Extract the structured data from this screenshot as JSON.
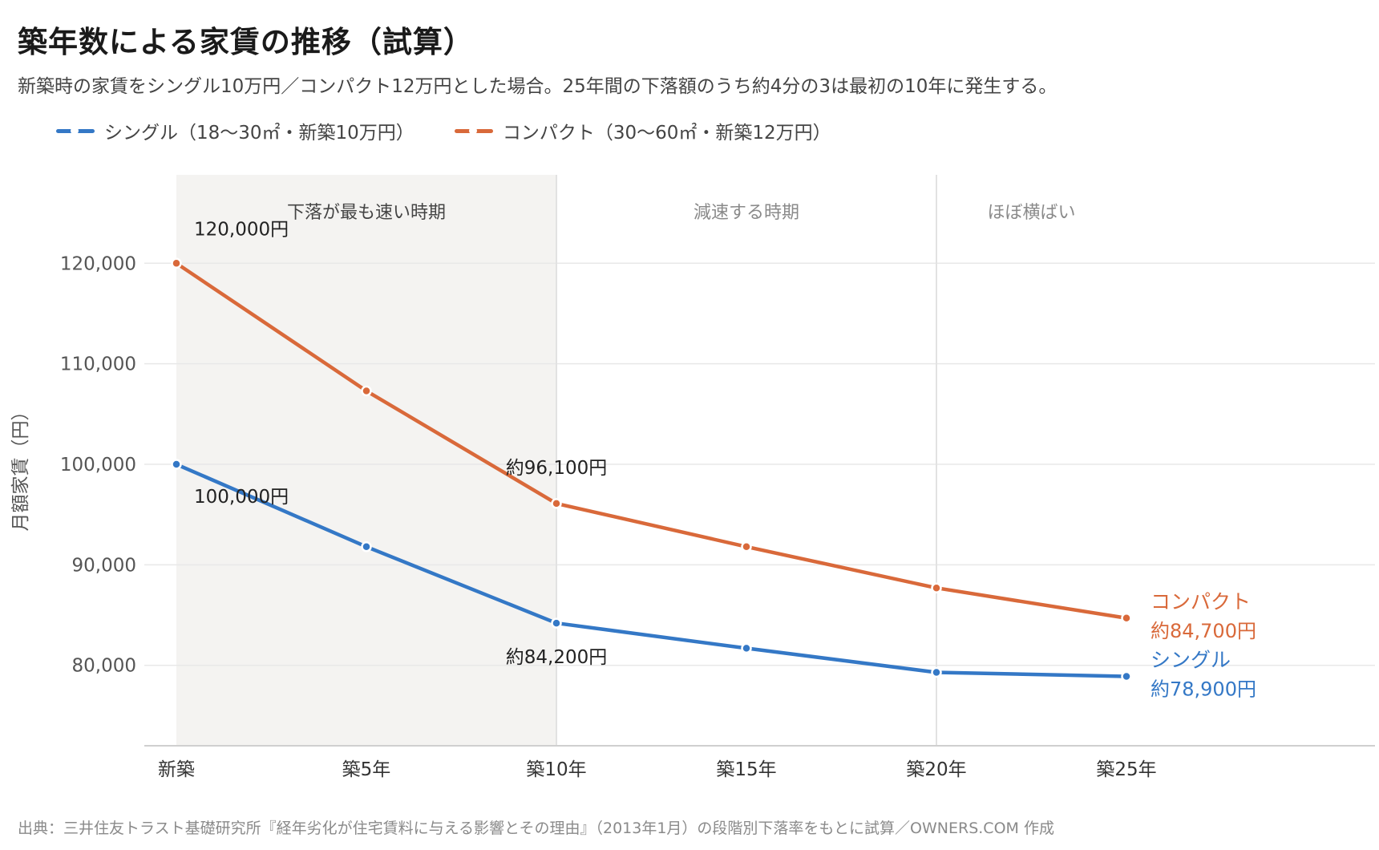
{
  "title": "築年数による家賃の推移（試算）",
  "subtitle": "新築時の家賃をシングル10万円／コンパクト12万円とした場合。25年間の下落額のうち約4分の3は最初の10年に発生する。",
  "legend": {
    "single": "シングル（18〜30㎡・新築10万円）",
    "compact": "コンパクト（30〜60㎡・新築12万円）"
  },
  "source": "出典：三井住友トラスト基礎研究所『経年劣化が住宅賃料に与える影響とその理由』（2013年1月）の段階別下落率をもとに試算／OWNERS.COM 作成",
  "colors": {
    "single": "#3478c6",
    "compact": "#d9693a",
    "band": "#f4f3f1",
    "grid": "#e8e8e8"
  },
  "chart_data": {
    "type": "line",
    "categories": [
      "新築",
      "築5年",
      "築10年",
      "築15年",
      "築20年",
      "築25年"
    ],
    "x": [
      0,
      5,
      10,
      15,
      20,
      25
    ],
    "ylabel": "月額家賃（円）",
    "ylim": [
      72000,
      128800
    ],
    "yticks": [
      80000,
      90000,
      100000,
      110000,
      120000
    ],
    "ytick_labels": [
      "80,000",
      "90,000",
      "100,000",
      "110,000",
      "120,000"
    ],
    "grid": true,
    "legend_position": "top-left",
    "series": [
      {
        "key": "single",
        "name": "シングル（18〜30㎡・新築10万円）",
        "values": [
          100000,
          91800,
          84200,
          81700,
          79300,
          78900
        ]
      },
      {
        "key": "compact",
        "name": "コンパクト（30〜60㎡・新築12万円）",
        "values": [
          120000,
          107300,
          96100,
          91800,
          87700,
          84700
        ]
      }
    ],
    "phases": [
      {
        "label": "下落が最も速い時期",
        "from": 0,
        "to": 10,
        "shaded": true
      },
      {
        "label": "減速する時期",
        "from": 10,
        "to": 20,
        "shaded": false
      },
      {
        "label": "ほぼ横ばい",
        "from": 20,
        "to": 25,
        "shaded": false
      }
    ],
    "annotations": [
      {
        "series": "compact",
        "x": 0,
        "text": "120,000円"
      },
      {
        "series": "single",
        "x": 0,
        "text": "100,000円"
      },
      {
        "series": "compact",
        "x": 10,
        "text": "約96,100円"
      },
      {
        "series": "single",
        "x": 10,
        "text": "約84,200円"
      }
    ],
    "end_labels": [
      {
        "series": "compact",
        "name": "コンパクト",
        "value": "約84,700円"
      },
      {
        "series": "single",
        "name": "シングル",
        "value": "約78,900円"
      }
    ]
  }
}
